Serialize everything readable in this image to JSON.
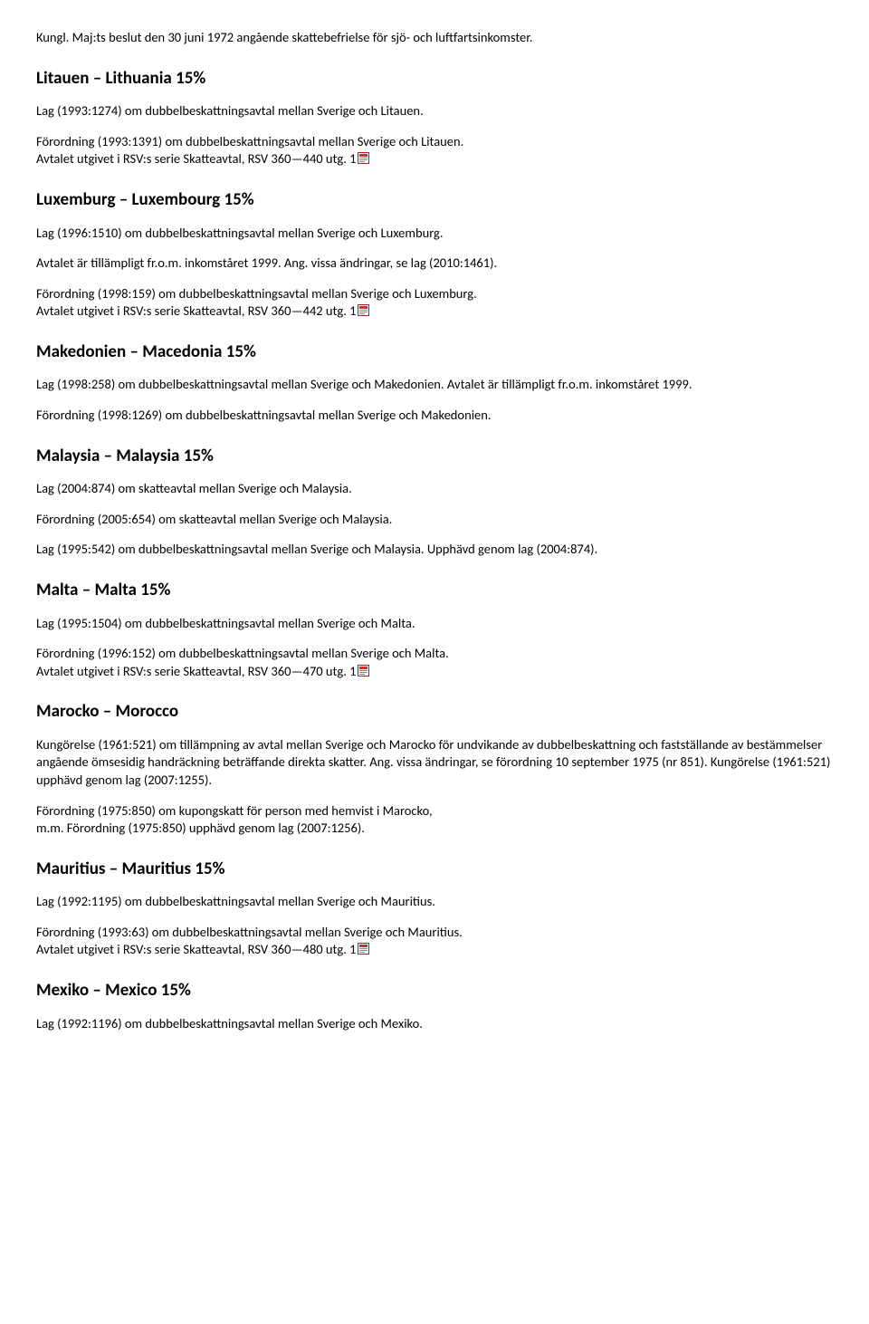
{
  "intro": "Kungl. Maj:ts beslut den 30 juni 1972 angående skattebefrielse för sjö- och luftfartsinkomster.",
  "sections": [
    {
      "heading": "Litauen – Lithuania 15%",
      "paras": [
        "Lag (1993:1274) om dubbelbeskattningsavtal mellan Sverige och Litauen.",
        "Förordning (1993:1391) om dubbelbeskattningsavtal mellan Sverige och Litauen.\nAvtalet utgivet i RSV:s serie Skatteavtal, RSV 360—440 utg. 1"
      ],
      "lastHasPdf": true
    },
    {
      "heading": "Luxemburg – Luxembourg 15%",
      "paras": [
        "Lag (1996:1510) om dubbelbeskattningsavtal mellan Sverige och Luxemburg.",
        "Avtalet är tillämpligt fr.o.m. inkomståret 1999. Ang. vissa ändringar, se lag (2010:1461).",
        "Förordning (1998:159) om dubbelbeskattningsavtal mellan Sverige och Luxemburg.\nAvtalet utgivet i RSV:s serie Skatteavtal, RSV 360—442 utg. 1"
      ],
      "lastHasPdf": true
    },
    {
      "heading": "Makedonien – Macedonia 15%",
      "paras": [
        "Lag (1998:258) om dubbelbeskattningsavtal mellan Sverige och Makedonien. Avtalet är tillämpligt fr.o.m. inkomståret 1999.",
        "Förordning (1998:1269) om dubbelbeskattningsavtal mellan Sverige och Makedonien."
      ],
      "lastHasPdf": false
    },
    {
      "heading": "Malaysia – Malaysia 15%",
      "paras": [
        "Lag (2004:874) om skatteavtal mellan Sverige och Malaysia.",
        "Förordning (2005:654) om skatteavtal mellan Sverige och Malaysia.",
        "Lag (1995:542) om dubbelbeskattningsavtal mellan Sverige och Malaysia. Upphävd genom lag (2004:874)."
      ],
      "lastHasPdf": false
    },
    {
      "heading": "Malta – Malta 15%",
      "paras": [
        "Lag (1995:1504) om dubbelbeskattningsavtal mellan Sverige och Malta.",
        "Förordning (1996:152) om dubbelbeskattningsavtal mellan Sverige och Malta.\nAvtalet utgivet i RSV:s serie Skatteavtal, RSV 360—470 utg. 1"
      ],
      "lastHasPdf": true
    },
    {
      "heading": "Marocko – Morocco",
      "paras": [
        "Kungörelse (1961:521) om tillämpning av avtal mellan Sverige och Marocko för undvikande av dubbelbeskattning och fastställande av bestämmelser angående ömsesidig handräckning beträffande direkta skatter. Ang. vissa ändringar, se förordning 10 september 1975 (nr 851). Kungörelse (1961:521) upphävd genom lag (2007:1255).",
        "Förordning (1975:850) om kupongskatt för person med hemvist i Marocko,\nm.m. Förordning (1975:850) upphävd genom lag (2007:1256)."
      ],
      "lastHasPdf": false
    },
    {
      "heading": "Mauritius – Mauritius 15%",
      "paras": [
        "Lag (1992:1195) om dubbelbeskattningsavtal mellan Sverige och Mauritius.",
        "Förordning (1993:63) om dubbelbeskattningsavtal mellan Sverige och Mauritius.\nAvtalet utgivet i RSV:s serie Skatteavtal, RSV 360—480 utg. 1"
      ],
      "lastHasPdf": true
    },
    {
      "heading": "Mexiko – Mexico 15%",
      "paras": [
        "Lag (1992:1196) om dubbelbeskattningsavtal mellan Sverige och Mexiko."
      ],
      "lastHasPdf": false
    }
  ]
}
